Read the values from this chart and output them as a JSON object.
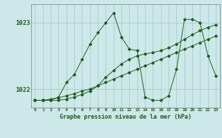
{
  "background_color": "#cce8e8",
  "plot_bg_color": "#cce8e8",
  "grid_color": "#aacccc",
  "line_color": "#1a5c1a",
  "title": "Graphe pression niveau de la mer (hPa)",
  "xlim": [
    -0.5,
    23.5
  ],
  "ylim": [
    1021.72,
    1023.28
  ],
  "yticks": [
    1022,
    1023
  ],
  "xticks": [
    0,
    1,
    2,
    3,
    4,
    5,
    6,
    7,
    8,
    9,
    10,
    11,
    12,
    13,
    14,
    15,
    16,
    17,
    18,
    19,
    20,
    21,
    22,
    23
  ],
  "line1_x": [
    0,
    1,
    2,
    3,
    4,
    5,
    6,
    7,
    8,
    9,
    10,
    11,
    12,
    13,
    14,
    15,
    16,
    17,
    18,
    19,
    20,
    21,
    22,
    23
  ],
  "line1_y": [
    1021.83,
    1021.83,
    1021.85,
    1021.87,
    1021.9,
    1021.93,
    1021.97,
    1022.0,
    1022.05,
    1022.1,
    1022.15,
    1022.2,
    1022.25,
    1022.3,
    1022.35,
    1022.4,
    1022.45,
    1022.5,
    1022.55,
    1022.6,
    1022.65,
    1022.7,
    1022.75,
    1022.8
  ],
  "line2_x": [
    0,
    1,
    2,
    3,
    4,
    5,
    6,
    7,
    8,
    9,
    10,
    11,
    12,
    13,
    14,
    15,
    16,
    17,
    18,
    19,
    20,
    21,
    22,
    23
  ],
  "line2_y": [
    1021.83,
    1021.83,
    1021.83,
    1021.83,
    1021.85,
    1021.88,
    1021.92,
    1021.97,
    1022.05,
    1022.18,
    1022.28,
    1022.38,
    1022.45,
    1022.5,
    1022.53,
    1022.55,
    1022.58,
    1022.62,
    1022.68,
    1022.75,
    1022.82,
    1022.88,
    1022.93,
    1022.97
  ],
  "line3_x": [
    0,
    1,
    2,
    3,
    4,
    5,
    6,
    7,
    8,
    9,
    10,
    11,
    12,
    13,
    14,
    15,
    16,
    17,
    18,
    19,
    20,
    21,
    22,
    23
  ],
  "line3_y": [
    1021.83,
    1021.83,
    1021.83,
    1021.88,
    1022.1,
    1022.22,
    1022.45,
    1022.68,
    1022.85,
    1023.0,
    1023.15,
    1022.78,
    1022.6,
    1022.58,
    1021.88,
    1021.83,
    1021.83,
    1021.9,
    1022.3,
    1023.05,
    1023.05,
    1023.0,
    1022.5,
    1022.2
  ]
}
